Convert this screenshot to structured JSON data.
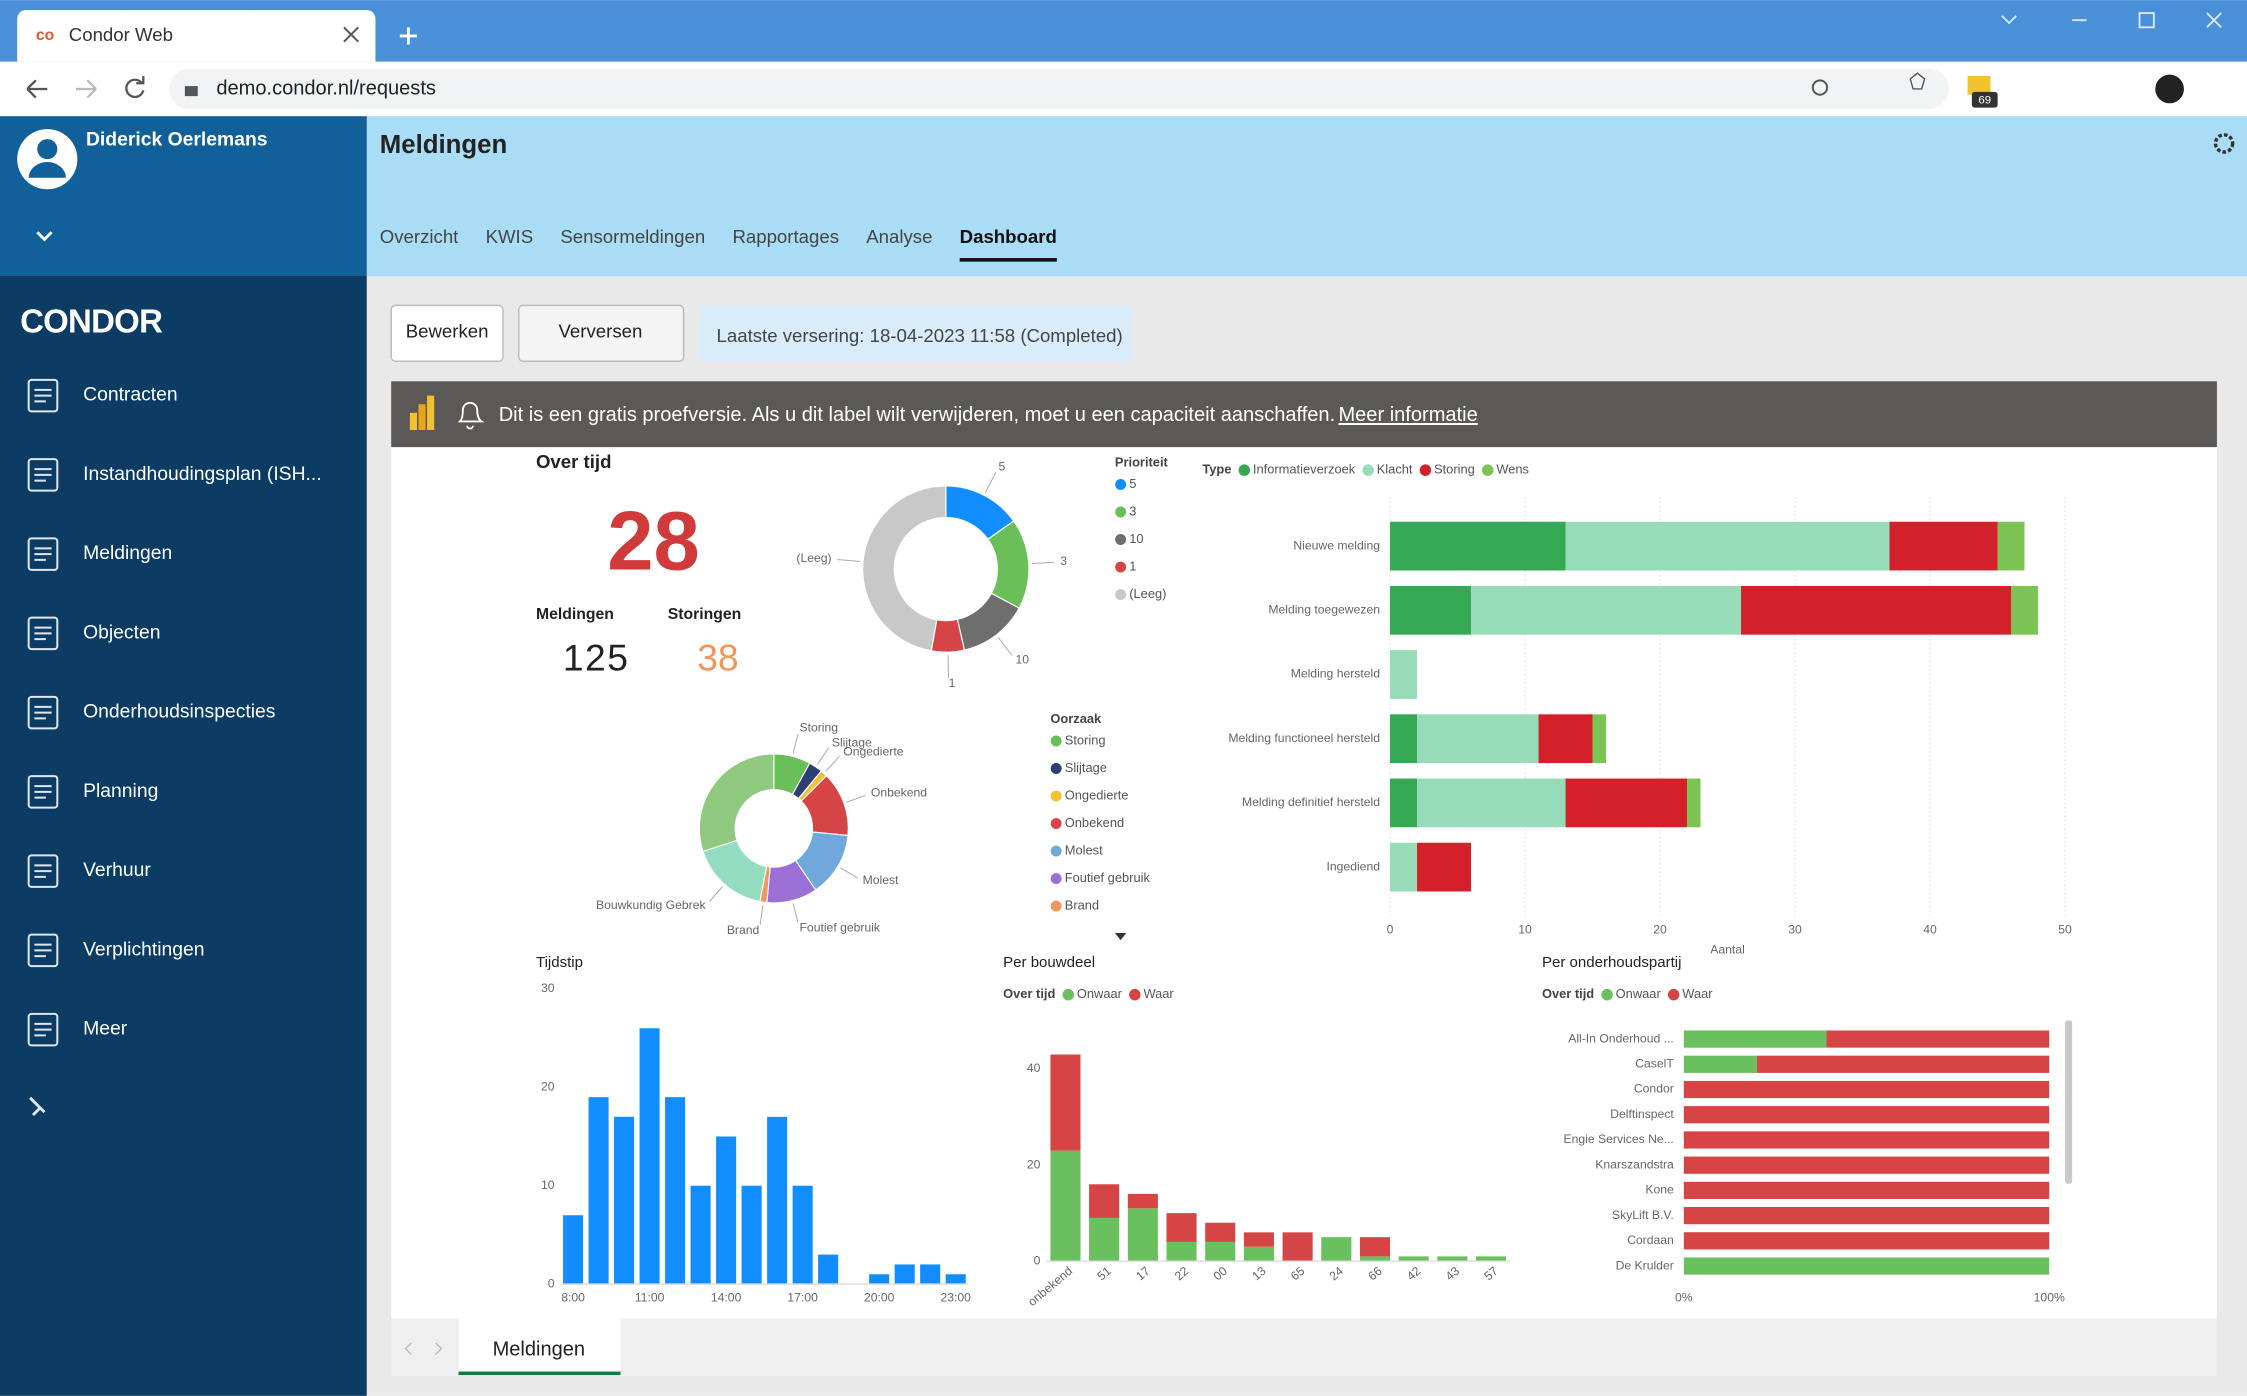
{
  "browser": {
    "tab_title": "Condor Web",
    "url": "demo.condor.nl/requests",
    "extension_badge": "69"
  },
  "sidebar": {
    "user": "Diderick Oerlemans",
    "logo": "CONDOR",
    "menu": [
      "Contracten",
      "Instandhoudingsplan (ISH...",
      "Meldingen",
      "Objecten",
      "Onderhoudsinspecties",
      "Planning",
      "Verhuur",
      "Verplichtingen",
      "Meer"
    ]
  },
  "header": {
    "title": "Meldingen",
    "tabs": [
      "Overzicht",
      "KWIS",
      "Sensormeldingen",
      "Rapportages",
      "Analyse",
      "Dashboard"
    ],
    "active_tab": "Dashboard"
  },
  "toolbar": {
    "buttons": [
      "Bewerken",
      "Verversen"
    ],
    "status": "Laatste versering: 18-04-2023 11:58 (Completed)"
  },
  "banner": {
    "text": "Dit is een gratis proefversie. Als u dit label wilt verwijderen, moet u een capaciteit aanschaffen.",
    "link": "Meer informatie"
  },
  "kpi": {
    "title": "Over tijd",
    "value": 28,
    "items": [
      {
        "label": "Meldingen",
        "value": 125
      },
      {
        "label": "Storingen",
        "value": 38
      }
    ]
  },
  "chart_data": [
    {
      "type": "donut",
      "legend_title": "Prioriteit",
      "categories": [
        "5",
        "3",
        "10",
        "1",
        "(Leeg)"
      ],
      "values": [
        19,
        22,
        17,
        8,
        59
      ],
      "colors": [
        "#118dff",
        "#6bbf59",
        "#6e6e6e",
        "#d64545",
        "#c8c8c8"
      ]
    },
    {
      "type": "donut",
      "legend_title": "Oorzaak",
      "categories": [
        "Storing",
        "Slijtage",
        "Ongedierte",
        "Onbekend",
        "Molest",
        "Foutief gebruik",
        "Brand",
        "Bouwkundig Gebrek",
        null
      ],
      "values": [
        8,
        3,
        1.5,
        14,
        14,
        11,
        1.5,
        17,
        30
      ],
      "colors": [
        "#6bbf59",
        "#2f3e74",
        "#f2c12e",
        "#d64545",
        "#6fa8dc",
        "#9b6fd6",
        "#f0965a",
        "#94dcc0",
        "#8fc97e"
      ]
    },
    {
      "type": "hbar-stacked",
      "legend_title": "Type",
      "categories": [
        "Nieuwe melding",
        "Melding toegewezen",
        "Melding hersteld",
        "Melding functioneel hersteld",
        "Melding definitief hersteld",
        "Ingediend"
      ],
      "series": [
        {
          "name": "Informatieverzoek",
          "color": "#34a853",
          "values": [
            13,
            6,
            0,
            2,
            2,
            0
          ]
        },
        {
          "name": "Klacht",
          "color": "#97dbb9",
          "values": [
            24,
            20,
            2,
            9,
            11,
            2
          ]
        },
        {
          "name": "Storing",
          "color": "#d4202a",
          "values": [
            8,
            20,
            0,
            4,
            9,
            4
          ]
        },
        {
          "name": "Wens",
          "color": "#7cc353",
          "values": [
            2,
            2,
            0,
            1,
            1,
            0
          ]
        }
      ],
      "xlim": [
        0,
        50
      ],
      "xticks": [
        0,
        10,
        20,
        30,
        40,
        50
      ],
      "xlabel": "Aantal",
      "grid": true
    },
    {
      "type": "bar",
      "title": "Tijdstip",
      "categories": [
        "8:00",
        null,
        null,
        "11:00",
        null,
        null,
        "14:00",
        null,
        null,
        "17:00",
        null,
        null,
        "20:00",
        null,
        null,
        "23:00"
      ],
      "values": [
        7,
        19,
        17,
        26,
        19,
        10,
        15,
        10,
        17,
        10,
        3,
        0,
        1,
        2,
        2,
        1
      ],
      "color": "#118dff",
      "ylim": [
        0,
        30
      ],
      "yticks": [
        0,
        10,
        20,
        30
      ]
    },
    {
      "type": "bar-stacked",
      "title": "Per bouwdeel",
      "legend_title": "Over tijd",
      "categories": [
        "onbekend",
        "51",
        "17",
        "22",
        "00",
        "13",
        "65",
        "24",
        "66",
        "42",
        "43",
        "57"
      ],
      "series": [
        {
          "name": "Onwaar",
          "color": "#6abf5e",
          "values": [
            23,
            9,
            11,
            4,
            4,
            3,
            0,
            5,
            1,
            1,
            1,
            1
          ]
        },
        {
          "name": "Waar",
          "color": "#d64545",
          "values": [
            20,
            7,
            3,
            6,
            4,
            3,
            6,
            0,
            4,
            0,
            0,
            0
          ]
        }
      ],
      "ylim": [
        0,
        48
      ],
      "yticks": [
        0,
        20,
        40
      ]
    },
    {
      "type": "hbar-stacked",
      "title": "Per onderhoudspartij",
      "legend_title": "Over tijd",
      "categories": [
        "All-In Onderhoud ...",
        "CaselT",
        "Condor",
        "Delftinspect",
        "Engie Services Ne...",
        "Knarszandstra",
        "Kone",
        "SkyLift B.V.",
        "Cordaan",
        "De Krulder"
      ],
      "series": [
        {
          "name": "Onwaar",
          "color": "#6abf5e",
          "values": [
            39,
            20,
            0,
            0,
            0,
            0,
            0,
            0,
            0,
            100
          ]
        },
        {
          "name": "Waar",
          "color": "#d64545",
          "values": [
            61,
            80,
            100,
            100,
            100,
            100,
            100,
            100,
            100,
            0
          ]
        }
      ],
      "xlim": [
        0,
        100
      ],
      "xticks": [
        {
          "value": 0,
          "label": "0%"
        },
        {
          "value": 100,
          "label": "100%"
        }
      ],
      "grid": false
    }
  ],
  "page_tab": "Meldingen"
}
